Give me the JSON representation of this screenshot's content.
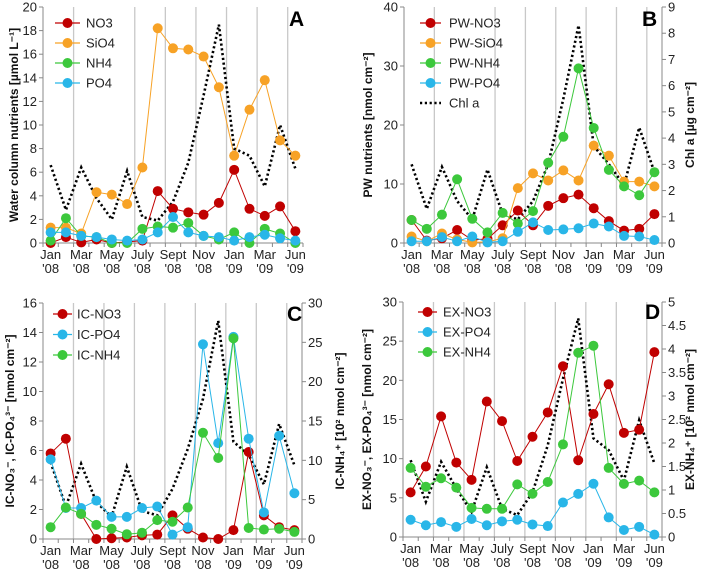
{
  "chart_data": [
    {
      "panel": "A",
      "type": "line",
      "categories": [
        "Jan '08",
        "",
        "Mar '08",
        "",
        "May '08",
        "",
        "July '08",
        "",
        "Sept '08",
        "",
        "Nov '08",
        "",
        "Jan '09",
        "",
        "Mar '09",
        "",
        "Jun '09"
      ],
      "ylabel": "Water column nutrients [µmol L⁻¹]",
      "ylim": [
        0,
        20
      ],
      "yticks": [
        0,
        2,
        4,
        6,
        8,
        10,
        12,
        14,
        16,
        18,
        20
      ],
      "series": [
        {
          "name": "NO3",
          "color": "#c00000",
          "axis": "left",
          "legend": true,
          "values": [
            0.0,
            0.5,
            0.05,
            0.3,
            0.0,
            0.1,
            0.2,
            4.4,
            2.9,
            2.6,
            2.4,
            3.4,
            6.2,
            2.9,
            2.3,
            3.1,
            1.0
          ]
        },
        {
          "name": "SiO4",
          "color": "#f7a226",
          "axis": "left",
          "legend": true,
          "values": [
            1.3,
            1.3,
            0.8,
            4.3,
            4.1,
            3.3,
            6.4,
            18.2,
            16.5,
            16.4,
            15.8,
            13.2,
            7.4,
            11.3,
            13.8,
            8.7,
            7.4
          ]
        },
        {
          "name": "NH4",
          "color": "#3cc83c",
          "axis": "left",
          "legend": true,
          "values": [
            0.2,
            2.1,
            0.6,
            0.5,
            0.0,
            0.0,
            1.2,
            1.4,
            1.3,
            1.7,
            0.6,
            0.3,
            0.9,
            0.0,
            1.2,
            0.8,
            0.0
          ]
        },
        {
          "name": "PO4",
          "color": "#29b6e8",
          "axis": "left",
          "legend": true,
          "values": [
            0.9,
            0.9,
            0.6,
            0.5,
            0.3,
            0.2,
            0.3,
            0.9,
            2.2,
            0.9,
            0.6,
            0.5,
            0.2,
            0.5,
            0.7,
            0.4,
            0.2
          ]
        },
        {
          "name": "",
          "color": "#000000",
          "axis": "left",
          "dotted": true,
          "legend": false,
          "values": [
            6.6,
            2.8,
            6.4,
            3.8,
            2.0,
            6.1,
            2.2,
            1.9,
            3.5,
            6.8,
            12.5,
            18.5,
            8.0,
            7.4,
            4.8,
            10.0,
            6.3
          ]
        }
      ]
    },
    {
      "panel": "B",
      "type": "line",
      "categories": [
        "Jan '08",
        "",
        "Mar '08",
        "",
        "May '08",
        "",
        "July '08",
        "",
        "Sept '08",
        "",
        "Nov '08",
        "",
        "Jan '09",
        "",
        "Mar '09",
        "",
        "Jun '09"
      ],
      "ylabel": "PW nutrients [nmol cm⁻²]",
      "ylabel_right": "Chl a [µg cm⁻²]",
      "ylim": [
        0,
        40
      ],
      "yticks": [
        0,
        10,
        20,
        30,
        40
      ],
      "ylim_right": [
        0,
        9
      ],
      "yticks_right": [
        0,
        1,
        2,
        3,
        4,
        5,
        6,
        7,
        8,
        9
      ],
      "series": [
        {
          "name": "PW-NO3",
          "color": "#c00000",
          "axis": "left",
          "legend": true,
          "values": [
            3.9,
            0.4,
            0.8,
            2.2,
            0.5,
            0.7,
            3.0,
            5.5,
            3.0,
            6.3,
            7.6,
            8.2,
            5.9,
            3.7,
            2.1,
            2.4,
            4.9
          ]
        },
        {
          "name": "PW-SiO4",
          "color": "#f7a226",
          "axis": "left",
          "legend": true,
          "values": [
            1.1,
            0.3,
            1.6,
            0.6,
            0.1,
            0.2,
            0.8,
            9.3,
            11.8,
            10.6,
            12.3,
            10.6,
            16.5,
            14.8,
            10.4,
            10.4,
            9.6
          ]
        },
        {
          "name": "PW-NH4",
          "color": "#3cc83c",
          "axis": "left",
          "legend": true,
          "values": [
            3.9,
            2.4,
            4.8,
            10.8,
            4.1,
            1.8,
            5.1,
            3.3,
            5.4,
            13.6,
            18.0,
            29.6,
            19.5,
            12.4,
            9.6,
            8.1,
            12.0
          ]
        },
        {
          "name": "PW-PO4",
          "color": "#29b6e8",
          "axis": "left",
          "legend": true,
          "values": [
            0.3,
            0.3,
            1.0,
            0.3,
            1.1,
            0.1,
            0.3,
            1.9,
            3.5,
            2.2,
            2.3,
            2.5,
            3.3,
            2.8,
            1.2,
            1.1,
            0.5
          ]
        },
        {
          "name": "Chl a",
          "color": "#000000",
          "axis": "right",
          "dotted": true,
          "legend": true,
          "values": [
            3.0,
            1.3,
            2.9,
            1.6,
            0.9,
            2.8,
            1.1,
            0.9,
            1.6,
            3.0,
            5.5,
            8.3,
            3.7,
            3.0,
            2.2,
            4.4,
            2.7
          ]
        }
      ]
    },
    {
      "panel": "C",
      "type": "line",
      "categories": [
        "Jan '08",
        "",
        "Mar '08",
        "",
        "May '08",
        "",
        "July '08",
        "",
        "Sept '08",
        "",
        "Nov '08",
        "",
        "Jan '09",
        "",
        "Mar '09",
        "",
        "Jun '09"
      ],
      "ylabel": "IC-NO₃⁻, IC-PO₄³⁻ [nmol cm⁻²]",
      "ylabel_right": "IC-NH₄⁺ [10² nmol cm⁻²]",
      "ylim": [
        0,
        16
      ],
      "yticks": [
        0,
        2,
        4,
        6,
        8,
        10,
        12,
        14,
        16
      ],
      "ylim_right": [
        0,
        30
      ],
      "yticks_right": [
        0,
        5,
        10,
        15,
        20,
        25,
        30
      ],
      "series": [
        {
          "name": "IC-NO3",
          "color": "#c00000",
          "axis": "left",
          "legend": true,
          "values": [
            5.8,
            6.8,
            1.7,
            0.0,
            0.05,
            0.1,
            0.25,
            0.3,
            1.6,
            0.7,
            0.1,
            0.0,
            0.6,
            5.9,
            1.6,
            0.8,
            0.6
          ]
        },
        {
          "name": "IC-PO4",
          "color": "#29b6e8",
          "axis": "left",
          "legend": true,
          "values": [
            5.4,
            2.1,
            2.1,
            2.6,
            1.5,
            1.5,
            2.1,
            2.2,
            0.3,
            0.8,
            13.2,
            6.5,
            13.7,
            6.8,
            1.8,
            7.0,
            3.1
          ]
        },
        {
          "name": "IC-NH4",
          "color": "#3cc83c",
          "axis": "right",
          "legend": true,
          "values": [
            1.5,
            4.0,
            3.2,
            1.8,
            1.3,
            0.6,
            0.8,
            2.4,
            2.2,
            4.0,
            13.5,
            10.3,
            25.5,
            1.4,
            1.2,
            1.3,
            0.9
          ]
        },
        {
          "name": "",
          "color": "#000000",
          "axis": "left",
          "dotted": true,
          "legend": false,
          "values": [
            5.2,
            2.2,
            5.1,
            2.5,
            1.5,
            4.9,
            1.9,
            1.6,
            3.4,
            6.1,
            9.5,
            14.8,
            6.6,
            5.7,
            3.7,
            7.8,
            5.0
          ]
        }
      ]
    },
    {
      "panel": "D",
      "type": "line",
      "categories": [
        "Jan '08",
        "",
        "Mar '08",
        "",
        "May '08",
        "",
        "July '08",
        "",
        "Sept '08",
        "",
        "Nov '08",
        "",
        "Jan '09",
        "",
        "Mar '09",
        "",
        "Jun '09"
      ],
      "ylabel": "EX-NO₃⁻, EX-PO₄³⁻ [nmol cm⁻²]",
      "ylabel_right": "EX-NH₄⁺ [10² nmol cm⁻²]",
      "ylim": [
        0,
        30
      ],
      "yticks": [
        0,
        5,
        10,
        15,
        20,
        25,
        30
      ],
      "ylim_right": [
        0,
        5
      ],
      "yticks_right": [
        0,
        0.5,
        1,
        1.5,
        2,
        2.5,
        3,
        3.5,
        4,
        4.5,
        5
      ],
      "series": [
        {
          "name": "EX-NO3",
          "color": "#c00000",
          "axis": "left",
          "legend": true,
          "values": [
            5.7,
            9.0,
            15.4,
            9.5,
            7.3,
            17.3,
            14.8,
            9.7,
            12.8,
            15.9,
            21.8,
            9.8,
            15.7,
            19.5,
            13.3,
            13.7,
            23.6
          ]
        },
        {
          "name": "EX-PO4",
          "color": "#29b6e8",
          "axis": "left",
          "legend": true,
          "values": [
            2.2,
            1.5,
            1.9,
            1.3,
            2.3,
            1.5,
            2.0,
            2.2,
            1.6,
            1.4,
            4.4,
            5.5,
            6.8,
            2.5,
            0.9,
            1.3,
            0.3
          ]
        },
        {
          "name": "EX-NH4",
          "color": "#3cc83c",
          "axis": "right",
          "legend": true,
          "values": [
            1.47,
            1.07,
            1.25,
            1.05,
            0.62,
            0.6,
            0.6,
            1.12,
            0.92,
            1.17,
            1.97,
            3.92,
            4.07,
            1.47,
            1.13,
            1.2,
            0.95
          ]
        },
        {
          "name": "",
          "color": "#000000",
          "axis": "left",
          "dotted": true,
          "legend": false,
          "values": [
            9.8,
            4.5,
            9.6,
            6.2,
            3.2,
            8.9,
            3.6,
            2.8,
            5.7,
            11.7,
            20.2,
            27.9,
            12.6,
            11.1,
            7.2,
            14.9,
            9.4
          ]
        }
      ]
    }
  ]
}
